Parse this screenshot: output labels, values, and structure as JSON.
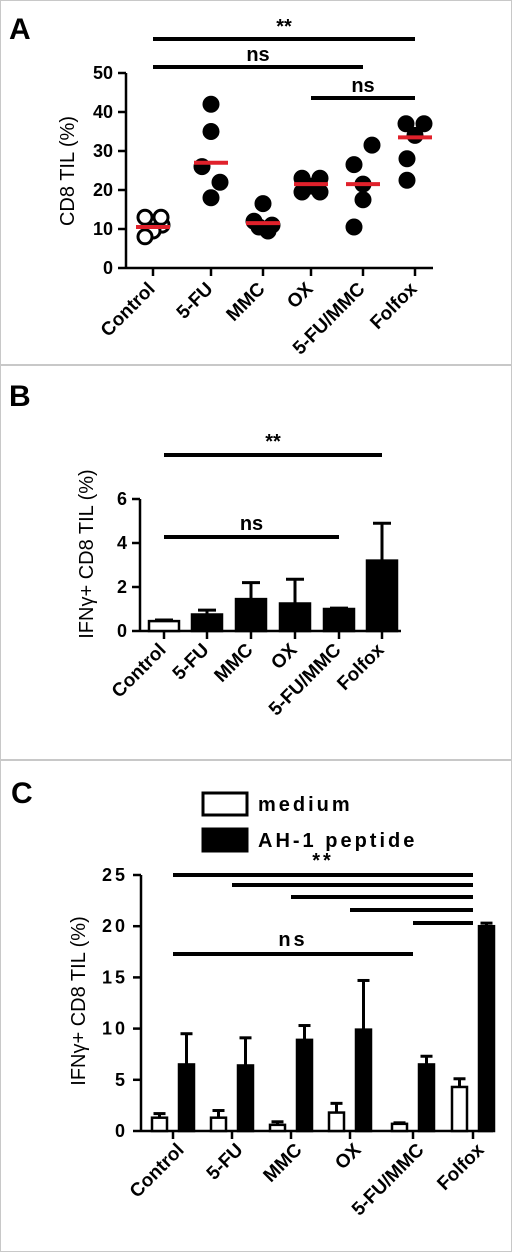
{
  "figure": {
    "colors": {
      "ink": "#000000",
      "median": "#e0212b",
      "open_fill": "#ffffff"
    },
    "panels": [
      {
        "letter": "A",
        "chart_data": {
          "type": "scatter",
          "ylabel": "CD8 TIL (%)",
          "ylim": [
            0,
            50
          ],
          "yticks": [
            0,
            10,
            20,
            30,
            40,
            50
          ],
          "grid": false,
          "categories": [
            "Control",
            "5-FU",
            "MMC",
            "OX",
            "5-FU/MMC",
            "Folfox"
          ],
          "open_markers": [
            "Control"
          ],
          "points": [
            [
              13,
              11,
              9.5,
              8,
              13
            ],
            [
              42,
              35,
              26,
              22,
              18
            ],
            [
              16.5,
              12,
              11,
              10.5,
              9.5
            ],
            [
              23,
              23,
              21,
              19.5,
              19.5
            ],
            [
              31.5,
              26.5,
              21.5,
              17.5,
              10.5
            ],
            [
              37,
              37,
              34,
              28,
              22.5
            ]
          ],
          "medians": [
            10.5,
            27,
            11.5,
            21.5,
            21.5,
            33.5
          ],
          "annotations": [
            {
              "text": "**",
              "from": "Control",
              "to": "Folfox"
            },
            {
              "text": "ns",
              "from": "Control",
              "to": "5-FU/MMC"
            },
            {
              "text": "ns",
              "from": "OX",
              "to": "Folfox"
            }
          ]
        }
      },
      {
        "letter": "B",
        "chart_data": {
          "type": "bar",
          "ylabel": "IFNγ+ CD8 TIL (%)",
          "ylim": [
            0,
            6
          ],
          "yticks": [
            0,
            2,
            4,
            6
          ],
          "grid": false,
          "categories": [
            "Control",
            "5-FU",
            "MMC",
            "OX",
            "5-FU/MMC",
            "Folfox"
          ],
          "open_bars": [
            "Control"
          ],
          "values": [
            0.45,
            0.75,
            1.45,
            1.25,
            1.0,
            3.2
          ],
          "errors": [
            0.05,
            0.2,
            0.75,
            1.1,
            0.04,
            1.7
          ],
          "annotations": [
            {
              "text": "**",
              "from": "Control",
              "to": "Folfox"
            },
            {
              "text": "ns",
              "from": "Control",
              "to": "5-FU/MMC"
            }
          ]
        }
      },
      {
        "letter": "C",
        "chart_data": {
          "type": "bar",
          "ylabel": "IFNγ+ CD8 TIL (%)",
          "ylim": [
            0,
            25
          ],
          "yticks": [
            0,
            5,
            10,
            15,
            20,
            25
          ],
          "grid": false,
          "legend_position": "top",
          "categories": [
            "Control",
            "5-FU",
            "MMC",
            "OX",
            "5-FU/MMC",
            "Folfox"
          ],
          "series": [
            {
              "name": "medium",
              "fill": "#ffffff",
              "values": [
                1.3,
                1.3,
                0.6,
                1.8,
                0.7,
                4.3
              ],
              "errors": [
                0.4,
                0.7,
                0.3,
                0.9,
                0.1,
                0.8
              ]
            },
            {
              "name": "AH-1 peptide",
              "fill": "#000000",
              "values": [
                6.5,
                6.4,
                8.9,
                9.9,
                6.5,
                20.0
              ],
              "errors": [
                3.0,
                2.7,
                1.4,
                4.8,
                0.8,
                0.3
              ]
            }
          ],
          "annotations": [
            {
              "text": "**",
              "from": "Control",
              "to": "Folfox"
            },
            {
              "text": "",
              "from": "5-FU",
              "to": "Folfox"
            },
            {
              "text": "",
              "from": "MMC",
              "to": "Folfox"
            },
            {
              "text": "",
              "from": "OX",
              "to": "Folfox"
            },
            {
              "text": "",
              "from": "5-FU/MMC",
              "to": "Folfox"
            },
            {
              "text": "ns",
              "from": "Control",
              "to": "5-FU/MMC"
            }
          ]
        }
      }
    ]
  }
}
